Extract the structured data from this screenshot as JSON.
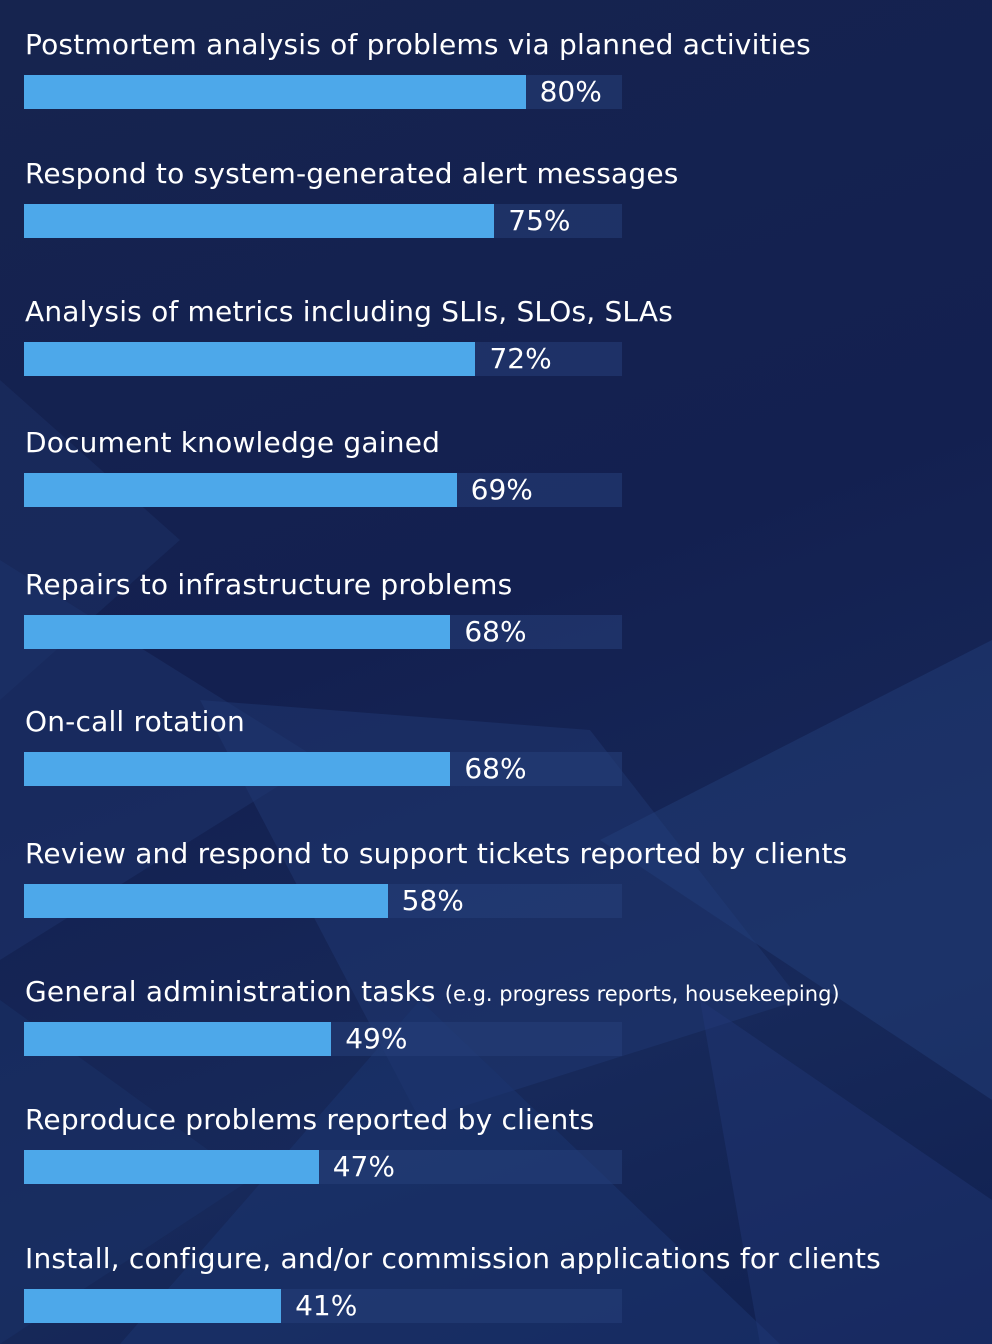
{
  "chart_data": {
    "type": "bar",
    "orientation": "horizontal",
    "ylim": [
      0,
      100
    ],
    "colors": {
      "bar": "#4da8ea",
      "track": "#26407a",
      "background": "#142352",
      "text": "#ffffff"
    },
    "items": [
      {
        "label": "Postmortem analysis of problems via planned activities",
        "value": 80,
        "display": "80%"
      },
      {
        "label": "Respond to system-generated alert messages",
        "value": 75,
        "display": "75%"
      },
      {
        "label": "Analysis of metrics including SLIs, SLOs, SLAs",
        "value": 72,
        "display": "72%"
      },
      {
        "label": "Document knowledge gained",
        "value": 69,
        "display": "69%"
      },
      {
        "label": "Repairs to infrastructure problems",
        "value": 68,
        "display": "68%"
      },
      {
        "label": "On-call rotation",
        "value": 68,
        "display": "68%"
      },
      {
        "label": "Review and respond to support tickets reported by clients",
        "value": 58,
        "display": "58%"
      },
      {
        "label": "General administration tasks",
        "sublabel": "(e.g. progress reports, housekeeping)",
        "value": 49,
        "display": "49%"
      },
      {
        "label": "Reproduce problems reported by clients",
        "value": 47,
        "display": "47%"
      },
      {
        "label": "Install, configure, and/or commission applications for clients",
        "value": 41,
        "display": "41%"
      }
    ]
  }
}
